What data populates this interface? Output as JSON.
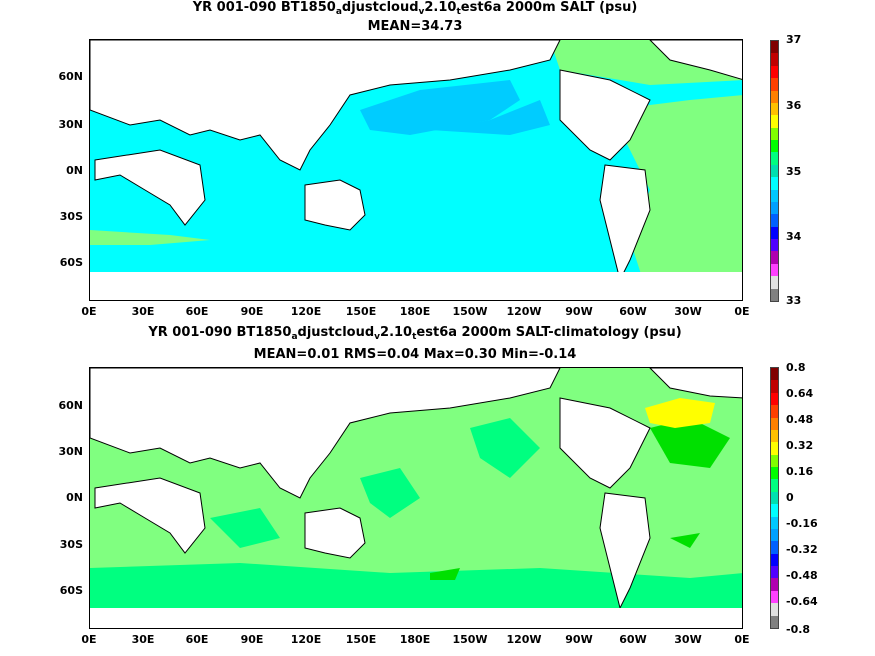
{
  "panel1": {
    "title_parts": [
      "YR 001-090 BT1850",
      "a",
      "djustcloud",
      "v",
      "2.10",
      "t",
      "est6a 2000m SALT (psu)"
    ],
    "subtitle": "MEAN=34.73",
    "colorbar_labels": [
      "37",
      "36",
      "35",
      "34",
      "33"
    ]
  },
  "panel2": {
    "title_parts": [
      "YR 001-090 BT1850",
      "a",
      "djustcloud",
      "v",
      "2.10",
      "t",
      "est6a 2000m SALT-climatology (psu)"
    ],
    "subtitle": "MEAN=0.01   RMS=0.04   Max=0.30   Min=-0.14",
    "colorbar_labels": [
      "0.8",
      "0.64",
      "0.48",
      "0.32",
      "0.16",
      "0",
      "-0.16",
      "-0.32",
      "-0.48",
      "-0.64",
      "-0.8"
    ]
  },
  "axes": {
    "lat_labels": [
      "60N",
      "30N",
      "0N",
      "30S",
      "60S"
    ],
    "lon_labels": [
      "0E",
      "30E",
      "60E",
      "90E",
      "120E",
      "150E",
      "180E",
      "150W",
      "120W",
      "90W",
      "60W",
      "30W",
      "0E"
    ]
  },
  "colors": {
    "bar1": [
      "#808080",
      "#e0e0e0",
      "#ff40ff",
      "#b000b0",
      "#5000ff",
      "#0000ff",
      "#0060ff",
      "#00a0ff",
      "#00c8ff",
      "#00ffff",
      "#00e0b0",
      "#00ff80",
      "#00ff00",
      "#80ff00",
      "#ffff00",
      "#ffc000",
      "#ff8000",
      "#ff4000",
      "#ff0000",
      "#c00000",
      "#800000"
    ],
    "ocean1_base": "#00ffff",
    "ocean1_low": "#00ccff",
    "ocean1_high": "#80ff80",
    "ocean2_base": "#80ff80",
    "ocean2_alt": "#00ff80",
    "ocean2_pos": "#00e000",
    "ocean2_high": "#ffff00",
    "land": "#ffffff"
  }
}
